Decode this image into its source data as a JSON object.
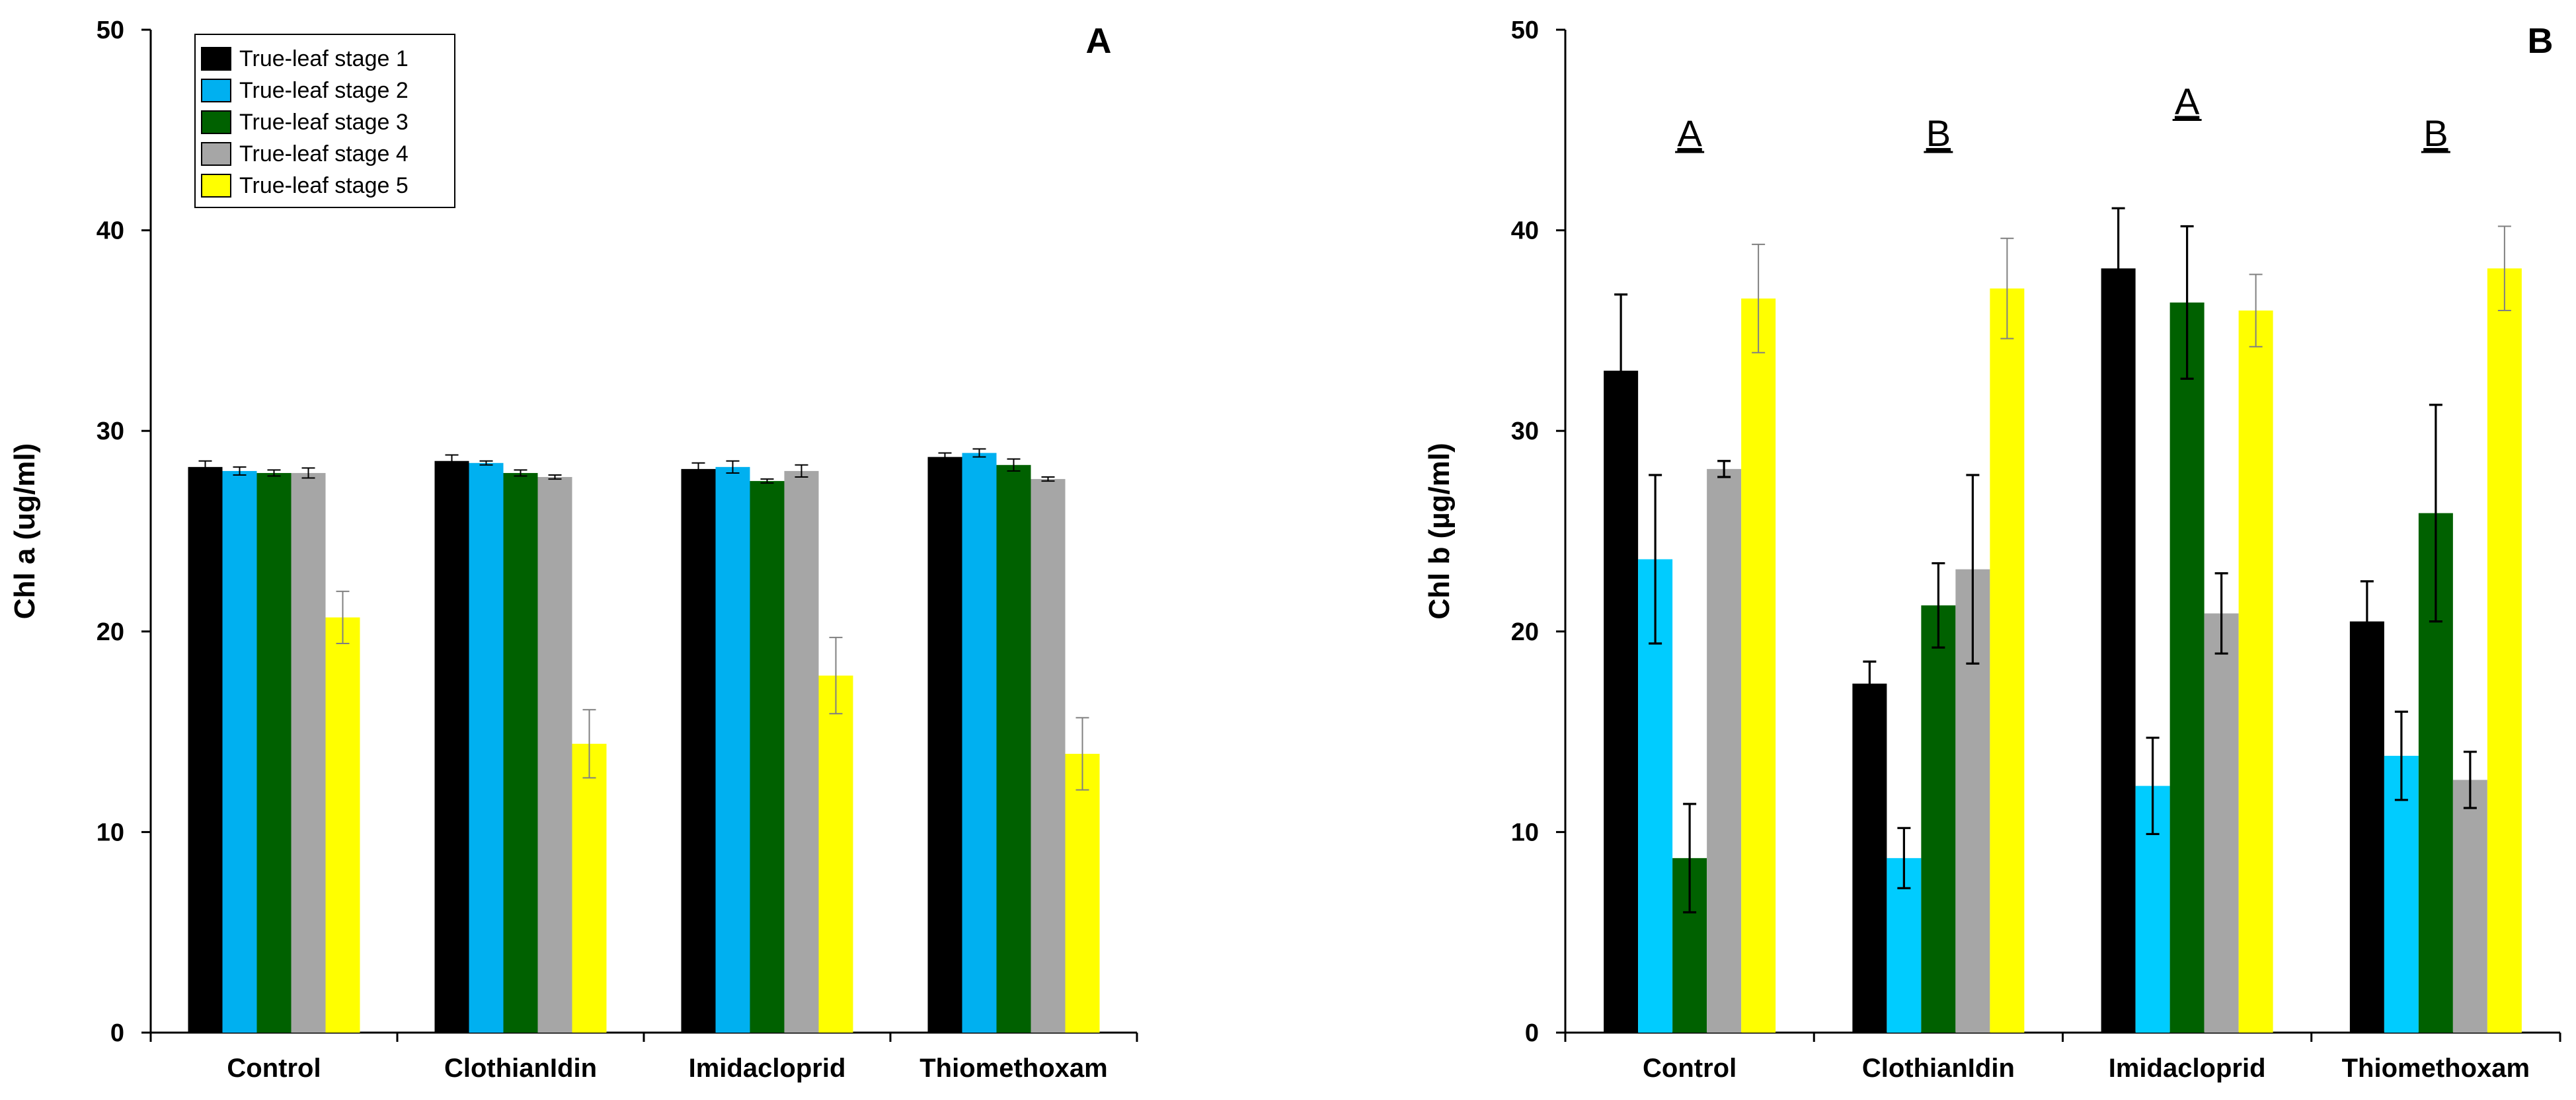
{
  "chart_data": [
    {
      "type": "bar",
      "panel_label": "A",
      "ylabel": "Chl a (ug/ml)",
      "xlabel": "",
      "ylim": [
        0,
        50
      ],
      "yticks": [
        0,
        10,
        20,
        30,
        40,
        50
      ],
      "yticks_text": [
        "0",
        "10",
        "20",
        "30",
        "40",
        "50"
      ],
      "categories": [
        "Control",
        "ClothianIdin",
        "Imidacloprid",
        "Thiomethoxam"
      ],
      "legend": {
        "position": "top-left",
        "entries": [
          "True-leaf stage 1",
          "True-leaf stage 2",
          "True-leaf stage 3",
          "True-leaf stage 4",
          "True-leaf stage 5"
        ]
      },
      "series": [
        {
          "name": "True-leaf stage 1",
          "color": "#000000",
          "values": [
            28.2,
            28.5,
            28.1,
            28.7
          ],
          "errors": [
            0.3,
            0.3,
            0.3,
            0.2
          ]
        },
        {
          "name": "True-leaf stage 2",
          "color": "#00B0F0",
          "values": [
            28.0,
            28.4,
            28.2,
            28.9
          ],
          "errors": [
            0.2,
            0.1,
            0.3,
            0.2
          ]
        },
        {
          "name": "True-leaf stage 3",
          "color": "#006100",
          "values": [
            27.9,
            27.9,
            27.5,
            28.3
          ],
          "errors": [
            0.15,
            0.15,
            0.1,
            0.3
          ]
        },
        {
          "name": "True-leaf stage 4",
          "color": "#A6A6A6",
          "values": [
            27.9,
            27.7,
            28.0,
            27.6
          ],
          "errors": [
            0.25,
            0.1,
            0.3,
            0.1
          ]
        },
        {
          "name": "True-leaf stage 5",
          "color": "#FFFF00",
          "values": [
            20.7,
            14.4,
            17.8,
            13.9
          ],
          "errors": [
            1.3,
            1.7,
            1.9,
            1.8
          ]
        }
      ],
      "annotations": []
    },
    {
      "type": "bar",
      "panel_label": "B",
      "ylabel": "Chl b (µg/ml)",
      "xlabel": "",
      "ylim": [
        0,
        50
      ],
      "yticks": [
        0,
        10,
        20,
        30,
        40,
        50
      ],
      "yticks_text": [
        "0",
        "10",
        "20",
        "30",
        "40",
        "50"
      ],
      "categories": [
        "Control",
        "ClothianIdin",
        "Imidacloprid",
        "Thiomethoxam"
      ],
      "legend": null,
      "series": [
        {
          "name": "True-leaf stage 1",
          "color": "#000000",
          "values": [
            33.0,
            17.4,
            38.1,
            20.5
          ],
          "errors": [
            3.8,
            1.1,
            3.0,
            2.0
          ]
        },
        {
          "name": "True-leaf stage 2",
          "color": "#00CCFF",
          "values": [
            23.6,
            8.7,
            12.3,
            13.8
          ],
          "errors": [
            4.2,
            1.5,
            2.4,
            2.2
          ]
        },
        {
          "name": "True-leaf stage 3",
          "color": "#006100",
          "values": [
            8.7,
            21.3,
            36.4,
            25.9
          ],
          "errors": [
            2.7,
            2.1,
            3.8,
            5.4
          ]
        },
        {
          "name": "True-leaf stage 4",
          "color": "#A6A6A6",
          "values": [
            28.1,
            23.1,
            20.9,
            12.6
          ],
          "errors": [
            0.4,
            4.7,
            2.0,
            1.4
          ]
        },
        {
          "name": "True-leaf stage 5",
          "color": "#FFFF00",
          "values": [
            36.6,
            37.1,
            36.0,
            38.1
          ],
          "errors": [
            2.7,
            2.5,
            1.8,
            2.1
          ]
        }
      ],
      "annotations": [
        {
          "category": "Control",
          "text": "A",
          "y": 44.2
        },
        {
          "category": "ClothianIdin",
          "text": "B",
          "y": 44.2
        },
        {
          "category": "Imidacloprid",
          "text": "A",
          "y": 45.8
        },
        {
          "category": "Thiomethoxam",
          "text": "B",
          "y": 44.2
        }
      ]
    }
  ]
}
